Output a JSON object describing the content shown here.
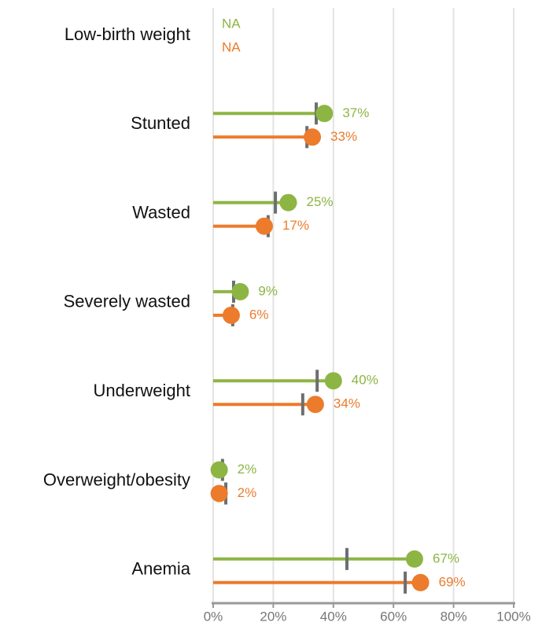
{
  "chart_data": {
    "type": "lollipop",
    "categories": [
      "Low-birth weight",
      "Stunted",
      "Wasted",
      "Severely wasted",
      "Underweight",
      "Overweight/obesity",
      "Anemia"
    ],
    "series": [
      {
        "color": "#8db544",
        "values": [
          null,
          37,
          25,
          9,
          40,
          2,
          67
        ],
        "value_labels": [
          "NA",
          "37%",
          "25%",
          "9%",
          "40%",
          "2%",
          "67%"
        ],
        "reference_values": [
          null,
          34.3,
          20.7,
          6.8,
          34.6,
          3.1,
          44.5
        ]
      },
      {
        "color": "#ec7b2c",
        "values": [
          null,
          33,
          17,
          6,
          34,
          2,
          69
        ],
        "value_labels": [
          "NA",
          "33%",
          "17%",
          "6%",
          "34%",
          "2%",
          "69%"
        ],
        "reference_values": [
          null,
          31.2,
          18.3,
          6.5,
          29.8,
          4.2,
          63.9
        ]
      }
    ],
    "reference_color": "#6d6e71",
    "xlim": [
      0,
      100
    ],
    "xticks": [
      {
        "value": 0,
        "label": "0%"
      },
      {
        "value": 20,
        "label": "20%"
      },
      {
        "value": 40,
        "label": "40%"
      },
      {
        "value": 60,
        "label": "60%"
      },
      {
        "value": 80,
        "label": "80%"
      },
      {
        "value": 100,
        "label": "100%"
      }
    ],
    "grid": true
  }
}
